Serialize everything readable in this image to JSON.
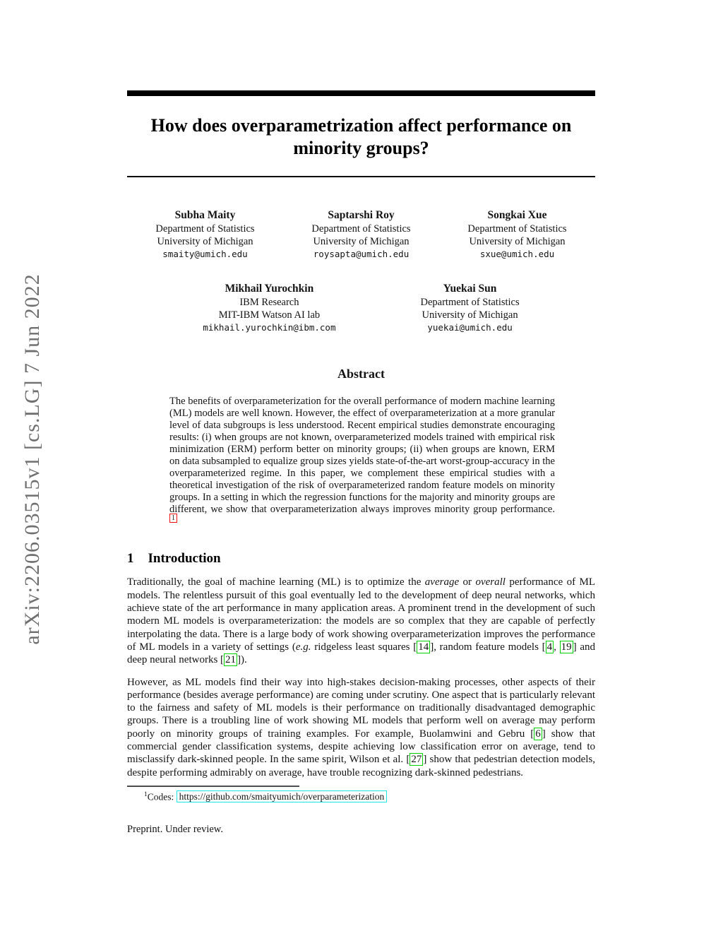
{
  "sidebar": {
    "arxiv_label": "arXiv:2206.03515v1  [cs.LG]  7 Jun 2022"
  },
  "title": {
    "line1": "How does overparametrization affect performance on",
    "line2": "minority groups?"
  },
  "authors": {
    "row1": [
      {
        "name": "Subha Maity",
        "affil1": "Department of Statistics",
        "affil2": "University of Michigan",
        "email": "smaity@umich.edu"
      },
      {
        "name": "Saptarshi Roy",
        "affil1": "Department of Statistics",
        "affil2": "University of Michigan",
        "email": "roysapta@umich.edu"
      },
      {
        "name": "Songkai Xue",
        "affil1": "Department of Statistics",
        "affil2": "University of Michigan",
        "email": "sxue@umich.edu"
      }
    ],
    "row2": [
      {
        "name": "Mikhail Yurochkin",
        "affil1": "IBM Research",
        "affil2": "MIT-IBM Watson AI lab",
        "email": "mikhail.yurochkin@ibm.com"
      },
      {
        "name": "Yuekai Sun",
        "affil1": "Department of Statistics",
        "affil2": "University of Michigan",
        "email": "yuekai@umich.edu"
      }
    ]
  },
  "abstract": {
    "heading": "Abstract",
    "segments": [
      {
        "t": "text",
        "v": "The benefits of overparameterization for the overall performance of modern machine learning (ML) models are well known. However, the effect of overparameterization at a more granular level of data subgroups is less understood. Recent empirical studies demonstrate encouraging results: (i) when groups are not known, overparameterized models trained with empirical risk minimization (ERM) perform better on minority groups; (ii) when groups are known, ERM on data subsampled to equalize group sizes yields state-of-the-art worst-group-accuracy in the overparameterized regime. In this paper, we complement these empirical studies with a theoretical investigation of the risk of overparameterized random feature models on minority groups. In a setting in which the regression functions for the majority and minority groups are different, we show that overparameterization always improves minority group performance. "
      },
      {
        "t": "fnref",
        "v": "1"
      }
    ]
  },
  "introduction": {
    "heading_number": "1",
    "heading_text": "Introduction",
    "para1_segments": [
      {
        "t": "text",
        "v": "Traditionally, the goal of machine learning (ML) is to optimize the "
      },
      {
        "t": "i",
        "v": "average"
      },
      {
        "t": "text",
        "v": " or "
      },
      {
        "t": "i",
        "v": "overall"
      },
      {
        "t": "text",
        "v": " performance of ML models. The relentless pursuit of this goal eventually led to the development of deep neural networks, which achieve state of the art performance in many application areas. A prominent trend in the development of such modern ML models is overparameterization: the models are so complex that they are capable of perfectly interpolating the data. There is a large body of work showing overparameterization improves the performance of ML models in a variety of settings ("
      },
      {
        "t": "i",
        "v": "e.g."
      },
      {
        "t": "text",
        "v": " ridgeless least squares "
      },
      {
        "t": "cite",
        "v": [
          "14"
        ]
      },
      {
        "t": "text",
        "v": ", random feature models "
      },
      {
        "t": "cite",
        "v": [
          "4",
          "19"
        ]
      },
      {
        "t": "text",
        "v": " and deep neural networks "
      },
      {
        "t": "cite",
        "v": [
          "21"
        ]
      },
      {
        "t": "text",
        "v": ")."
      }
    ],
    "para2_segments": [
      {
        "t": "text",
        "v": "However, as ML models find their way into high-stakes decision-making processes, other aspects of their performance (besides average performance) are coming under scrutiny. One aspect that is particularly relevant to the fairness and safety of ML models is their performance on traditionally disadvantaged demographic groups. There is a troubling line of work showing ML models that perform well on average may perform poorly on minority groups of training examples. For example, Buolamwini and Gebru "
      },
      {
        "t": "cite",
        "v": [
          "6"
        ]
      },
      {
        "t": "text",
        "v": " show that commercial gender classification systems, despite achieving low classification error on average, tend to misclassify dark-skinned people. In the same spirit, Wilson et al. "
      },
      {
        "t": "cite",
        "v": [
          "27"
        ]
      },
      {
        "t": "text",
        "v": " show that pedestrian detection models, despite performing admirably on average, have trouble recognizing dark-skinned pedestrians."
      }
    ]
  },
  "footnote": {
    "marker": "1",
    "label": "Codes: ",
    "url": "https://github.com/smaityumich/overparameterization"
  },
  "footer": {
    "preprint": "Preprint. Under review."
  },
  "colors": {
    "cite_border": "#00d400",
    "fnref_border": "#ee1111",
    "url_border": "#1de3e3",
    "sidebar_text": "#6f6f6f",
    "rule_black": "#000000"
  }
}
